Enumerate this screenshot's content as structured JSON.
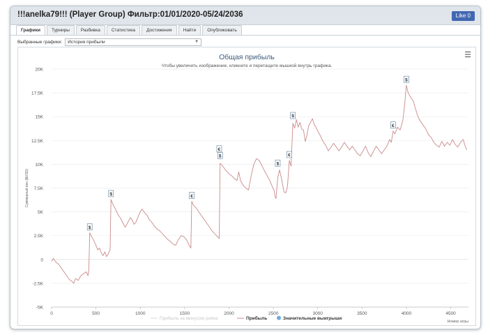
{
  "window": {
    "title": "!!!anelka79!!! (Player Group) Фильтр:01/01/2020-05/24/2036",
    "like_label": "Like 0"
  },
  "tabs": [
    "Графики",
    "Турниры",
    "Разбивка",
    "Статистика",
    "Достижения",
    "Найти",
    "Опубликовать"
  ],
  "selector": {
    "label": "Выбранные графики:",
    "value": "История прибыли"
  },
  "chart_data": {
    "type": "line",
    "title": "Общая прибыль",
    "subtitle": "Чтобы увеличить изображение, кликните и перетащите мышкой внутрь графика.",
    "ylabel": "Суммарный вин ($USD)",
    "xlabel": "Номер игры",
    "xlim": [
      0,
      4700
    ],
    "ylim": [
      -5000,
      20000
    ],
    "x_ticks": [
      0,
      500,
      1000,
      1500,
      2000,
      2500,
      3000,
      3500,
      4000,
      4500
    ],
    "x_tick_labels": [
      "0",
      "500",
      "1000",
      "1500",
      "2000",
      "2500",
      "3000",
      "3500",
      "4000",
      "4500"
    ],
    "y_ticks": [
      -5000,
      -2500,
      0,
      2500,
      5000,
      7500,
      10000,
      12500,
      15000,
      17500,
      20000
    ],
    "y_tick_labels": [
      "-5K",
      "-2.5K",
      "0",
      "2.5K",
      "5K",
      "7.5K",
      "10K",
      "12.5K",
      "15K",
      "17.5K",
      "20K"
    ],
    "legend": [
      "Прибыль за минусом рейка",
      "Прибыль",
      "Значительные выигрыши"
    ],
    "series": [
      {
        "name": "Прибыль",
        "color": "#c98a8a",
        "points": [
          [
            0,
            -200
          ],
          [
            20,
            100
          ],
          [
            50,
            -300
          ],
          [
            80,
            -500
          ],
          [
            110,
            -900
          ],
          [
            140,
            -1300
          ],
          [
            170,
            -1700
          ],
          [
            200,
            -2100
          ],
          [
            230,
            -2300
          ],
          [
            250,
            -2500
          ],
          [
            270,
            -2000
          ],
          [
            300,
            -2200
          ],
          [
            330,
            -1700
          ],
          [
            360,
            -1500
          ],
          [
            390,
            -1300
          ],
          [
            410,
            -1700
          ],
          [
            420,
            -1100
          ],
          [
            430,
            2800
          ],
          [
            450,
            2400
          ],
          [
            470,
            2100
          ],
          [
            500,
            1500
          ],
          [
            520,
            1000
          ],
          [
            540,
            1200
          ],
          [
            560,
            700
          ],
          [
            580,
            400
          ],
          [
            600,
            800
          ],
          [
            620,
            300
          ],
          [
            640,
            600
          ],
          [
            660,
            1100
          ],
          [
            670,
            6300
          ],
          [
            690,
            5800
          ],
          [
            720,
            5300
          ],
          [
            750,
            4700
          ],
          [
            780,
            4300
          ],
          [
            800,
            3900
          ],
          [
            830,
            3400
          ],
          [
            850,
            3700
          ],
          [
            870,
            4100
          ],
          [
            890,
            4400
          ],
          [
            910,
            4100
          ],
          [
            930,
            3700
          ],
          [
            950,
            3900
          ],
          [
            980,
            4600
          ],
          [
            1000,
            5000
          ],
          [
            1020,
            5300
          ],
          [
            1050,
            4900
          ],
          [
            1080,
            4600
          ],
          [
            1100,
            4200
          ],
          [
            1130,
            3900
          ],
          [
            1160,
            3500
          ],
          [
            1190,
            3200
          ],
          [
            1220,
            3000
          ],
          [
            1250,
            2700
          ],
          [
            1280,
            2400
          ],
          [
            1310,
            2100
          ],
          [
            1340,
            1900
          ],
          [
            1370,
            1600
          ],
          [
            1400,
            1500
          ],
          [
            1430,
            2100
          ],
          [
            1460,
            2500
          ],
          [
            1490,
            2400
          ],
          [
            1520,
            2100
          ],
          [
            1550,
            1500
          ],
          [
            1570,
            1200
          ],
          [
            1580,
            6100
          ],
          [
            1600,
            5700
          ],
          [
            1630,
            5400
          ],
          [
            1660,
            5000
          ],
          [
            1690,
            4600
          ],
          [
            1720,
            4200
          ],
          [
            1750,
            3800
          ],
          [
            1780,
            3400
          ],
          [
            1810,
            3000
          ],
          [
            1840,
            2700
          ],
          [
            1870,
            2400
          ],
          [
            1890,
            2200
          ],
          [
            1900,
            10100
          ],
          [
            1930,
            9800
          ],
          [
            1960,
            9400
          ],
          [
            2000,
            9000
          ],
          [
            2030,
            8800
          ],
          [
            2060,
            8500
          ],
          [
            2090,
            8300
          ],
          [
            2110,
            9200
          ],
          [
            2130,
            8300
          ],
          [
            2160,
            7800
          ],
          [
            2190,
            7500
          ],
          [
            2220,
            7300
          ],
          [
            2250,
            8800
          ],
          [
            2280,
            10000
          ],
          [
            2310,
            10600
          ],
          [
            2340,
            10400
          ],
          [
            2370,
            9900
          ],
          [
            2400,
            9300
          ],
          [
            2430,
            8800
          ],
          [
            2460,
            8300
          ],
          [
            2490,
            7600
          ],
          [
            2510,
            7200
          ],
          [
            2520,
            6600
          ],
          [
            2530,
            6400
          ],
          [
            2550,
            8600
          ],
          [
            2570,
            9400
          ],
          [
            2590,
            8600
          ],
          [
            2610,
            7600
          ],
          [
            2620,
            7100
          ],
          [
            2640,
            7000
          ],
          [
            2660,
            7700
          ],
          [
            2680,
            10400
          ],
          [
            2700,
            9800
          ],
          [
            2720,
            14300
          ],
          [
            2740,
            13800
          ],
          [
            2760,
            14700
          ],
          [
            2780,
            13900
          ],
          [
            2800,
            14400
          ],
          [
            2820,
            13700
          ],
          [
            2840,
            13600
          ],
          [
            2860,
            12400
          ],
          [
            2880,
            13100
          ],
          [
            2900,
            14100
          ],
          [
            2920,
            14400
          ],
          [
            2940,
            14800
          ],
          [
            2960,
            14200
          ],
          [
            2980,
            13900
          ],
          [
            3000,
            13500
          ],
          [
            3030,
            13000
          ],
          [
            3060,
            12400
          ],
          [
            3090,
            12000
          ],
          [
            3120,
            11400
          ],
          [
            3150,
            11800
          ],
          [
            3180,
            12200
          ],
          [
            3210,
            11800
          ],
          [
            3240,
            11400
          ],
          [
            3270,
            11800
          ],
          [
            3300,
            12300
          ],
          [
            3330,
            11900
          ],
          [
            3360,
            11500
          ],
          [
            3390,
            11900
          ],
          [
            3420,
            11500
          ],
          [
            3450,
            11100
          ],
          [
            3480,
            10900
          ],
          [
            3510,
            11400
          ],
          [
            3540,
            11900
          ],
          [
            3570,
            11200
          ],
          [
            3600,
            10800
          ],
          [
            3630,
            11400
          ],
          [
            3660,
            11900
          ],
          [
            3690,
            11500
          ],
          [
            3720,
            11100
          ],
          [
            3750,
            11500
          ],
          [
            3780,
            11900
          ],
          [
            3810,
            12600
          ],
          [
            3830,
            12300
          ],
          [
            3850,
            13500
          ],
          [
            3870,
            13200
          ],
          [
            3900,
            13900
          ],
          [
            3930,
            13600
          ],
          [
            3960,
            14600
          ],
          [
            3980,
            16200
          ],
          [
            4000,
            18300
          ],
          [
            4020,
            17500
          ],
          [
            4050,
            17000
          ],
          [
            4080,
            16600
          ],
          [
            4100,
            15900
          ],
          [
            4130,
            15000
          ],
          [
            4160,
            14500
          ],
          [
            4190,
            14100
          ],
          [
            4220,
            13700
          ],
          [
            4250,
            13100
          ],
          [
            4280,
            12800
          ],
          [
            4310,
            12300
          ],
          [
            4340,
            12000
          ],
          [
            4370,
            11800
          ],
          [
            4400,
            12400
          ],
          [
            4430,
            11900
          ],
          [
            4460,
            12300
          ],
          [
            4490,
            12000
          ],
          [
            4520,
            12600
          ],
          [
            4550,
            12100
          ],
          [
            4580,
            11800
          ],
          [
            4610,
            12300
          ],
          [
            4640,
            12600
          ],
          [
            4660,
            12000
          ],
          [
            4680,
            11500
          ]
        ]
      }
    ],
    "markers": [
      {
        "x": 430,
        "y": 2800,
        "symbol": "$"
      },
      {
        "x": 670,
        "y": 6300,
        "symbol": "$"
      },
      {
        "x": 1580,
        "y": 6100,
        "symbol": "€"
      },
      {
        "x": 1890,
        "y": 11000,
        "symbol": "€"
      },
      {
        "x": 1900,
        "y": 10300,
        "symbol": "$"
      },
      {
        "x": 2550,
        "y": 9500,
        "symbol": "$"
      },
      {
        "x": 2680,
        "y": 10400,
        "symbol": "€"
      },
      {
        "x": 2720,
        "y": 14500,
        "symbol": "$"
      },
      {
        "x": 3850,
        "y": 13500,
        "symbol": "€"
      },
      {
        "x": 4000,
        "y": 18300,
        "symbol": "$"
      }
    ]
  },
  "icons": {
    "menu": "hamburger-menu-icon",
    "legend_dot": "circle-icon"
  },
  "colors": {
    "line": "#c98a8a",
    "legend_dot": "#6fa8dc",
    "tab_bar": "#dfe5ea",
    "like_button": "#4267b2"
  }
}
